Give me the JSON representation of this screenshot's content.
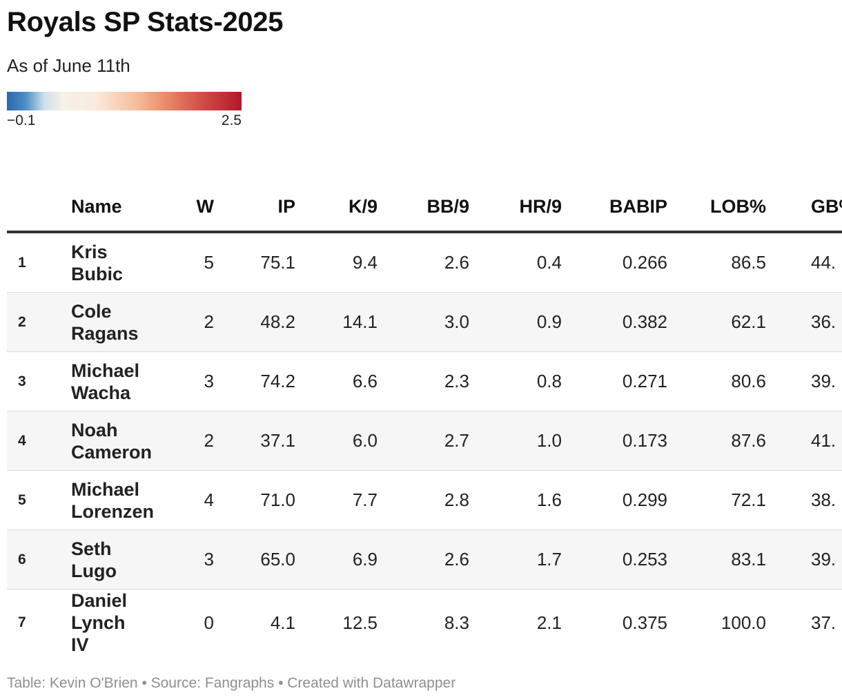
{
  "title": "Royals SP Stats-2025",
  "subtitle": "As of June 11th",
  "legend": {
    "min_label": "−0.1",
    "max_label": "2.5",
    "colors": [
      "#2c67ad",
      "#f5f2e6",
      "#b2172b"
    ]
  },
  "chart_data": {
    "type": "table",
    "title": "Royals SP Stats-2025",
    "subtitle": "As of June 11th",
    "columns": [
      "",
      "Name",
      "W",
      "IP",
      "K/9",
      "BB/9",
      "HR/9",
      "BABIP",
      "LOB%",
      "GB%"
    ],
    "rows": [
      {
        "rank": "1",
        "name": "Kris Bubic",
        "w": "5",
        "ip": "75.1",
        "k9": "9.4",
        "bb9": "2.6",
        "hr9": "0.4",
        "babip": "0.266",
        "lob": "86.5",
        "gb": "44."
      },
      {
        "rank": "2",
        "name": "Cole Ragans",
        "w": "2",
        "ip": "48.2",
        "k9": "14.1",
        "bb9": "3.0",
        "hr9": "0.9",
        "babip": "0.382",
        "lob": "62.1",
        "gb": "36."
      },
      {
        "rank": "3",
        "name": "Michael Wacha",
        "w": "3",
        "ip": "74.2",
        "k9": "6.6",
        "bb9": "2.3",
        "hr9": "0.8",
        "babip": "0.271",
        "lob": "80.6",
        "gb": "39."
      },
      {
        "rank": "4",
        "name": "Noah Cameron",
        "w": "2",
        "ip": "37.1",
        "k9": "6.0",
        "bb9": "2.7",
        "hr9": "1.0",
        "babip": "0.173",
        "lob": "87.6",
        "gb": "41."
      },
      {
        "rank": "5",
        "name": "Michael Lorenzen",
        "w": "4",
        "ip": "71.0",
        "k9": "7.7",
        "bb9": "2.8",
        "hr9": "1.6",
        "babip": "0.299",
        "lob": "72.1",
        "gb": "38."
      },
      {
        "rank": "6",
        "name": "Seth Lugo",
        "w": "3",
        "ip": "65.0",
        "k9": "6.9",
        "bb9": "2.6",
        "hr9": "1.7",
        "babip": "0.253",
        "lob": "83.1",
        "gb": "39."
      },
      {
        "rank": "7",
        "name": "Daniel Lynch IV",
        "w": "0",
        "ip": "4.1",
        "k9": "12.5",
        "bb9": "8.3",
        "hr9": "2.1",
        "babip": "0.375",
        "lob": "100.0",
        "gb": "37."
      }
    ],
    "color_scale": {
      "min": -0.1,
      "max": 2.5
    }
  },
  "footer": "Table: Kevin O'Brien • Source: Fangraphs • Created with Datawrapper"
}
